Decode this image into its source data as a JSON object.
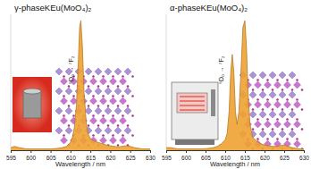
{
  "chart_data": [
    {
      "type": "area",
      "title": "γ-phaseKEu(MoO₄)₂",
      "x_label": "Wavelength / nm",
      "color": "#f0a232",
      "x": [
        595,
        596,
        597,
        598,
        599,
        600,
        601,
        602,
        603,
        604,
        605,
        606,
        607,
        608,
        609,
        610,
        610.5,
        611,
        611.5,
        612,
        612.3,
        612.6,
        613,
        613.4,
        614,
        614.5,
        615,
        616,
        617,
        618,
        619,
        620,
        621,
        622,
        623,
        624,
        625,
        626,
        627,
        628,
        629,
        630
      ],
      "values": [
        0.02,
        0.03,
        0.02,
        0.015,
        0.01,
        0.01,
        0.01,
        0.01,
        0.01,
        0.01,
        0.01,
        0.012,
        0.015,
        0.02,
        0.03,
        0.06,
        0.1,
        0.18,
        0.35,
        0.7,
        0.95,
        1.0,
        0.8,
        0.45,
        0.2,
        0.12,
        0.09,
        0.07,
        0.06,
        0.05,
        0.04,
        0.035,
        0.03,
        0.025,
        0.03,
        0.035,
        0.03,
        0.02,
        0.015,
        0.01,
        0.01,
        0.01
      ],
      "xlim": [
        595,
        630
      ],
      "xticks": [
        595,
        600,
        605,
        610,
        615,
        620,
        625,
        630
      ],
      "ylim": [
        0,
        1.05
      ],
      "tick_labels": "x",
      "annotations": [
        {
          "text": "⁵D₀ → ⁷F₂",
          "x": 610.8,
          "y": 0.62
        }
      ]
    },
    {
      "type": "area",
      "title": "α-phaseKEu(MoO₄)₂",
      "x_label": "Wavelength / nm",
      "color": "#f0a232",
      "x": [
        595,
        596,
        597,
        598,
        599,
        600,
        601,
        602,
        603,
        604,
        605,
        606,
        607,
        608,
        609,
        610,
        610.5,
        611,
        611.4,
        611.8,
        612.2,
        612.6,
        613,
        613.5,
        614,
        614.5,
        615,
        615.4,
        615.8,
        616.3,
        617,
        618,
        619,
        620,
        621,
        622,
        623,
        624,
        625,
        626,
        627,
        628,
        629,
        630
      ],
      "values": [
        0.02,
        0.02,
        0.015,
        0.01,
        0.01,
        0.01,
        0.01,
        0.01,
        0.01,
        0.01,
        0.012,
        0.015,
        0.02,
        0.03,
        0.05,
        0.08,
        0.13,
        0.3,
        0.6,
        0.74,
        0.6,
        0.3,
        0.2,
        0.3,
        0.6,
        0.95,
        1.0,
        0.8,
        0.45,
        0.2,
        0.1,
        0.07,
        0.05,
        0.04,
        0.035,
        0.03,
        0.03,
        0.035,
        0.04,
        0.03,
        0.02,
        0.015,
        0.01,
        0.01
      ],
      "xlim": [
        595,
        630
      ],
      "xticks": [
        595,
        600,
        605,
        610,
        615,
        620,
        625,
        630
      ],
      "ylim": [
        0,
        1.05
      ],
      "tick_labels": "x",
      "annotations": [
        {
          "text": "⁵D₀ → ⁷F₂",
          "x": 609.6,
          "y": 0.62
        }
      ]
    }
  ]
}
